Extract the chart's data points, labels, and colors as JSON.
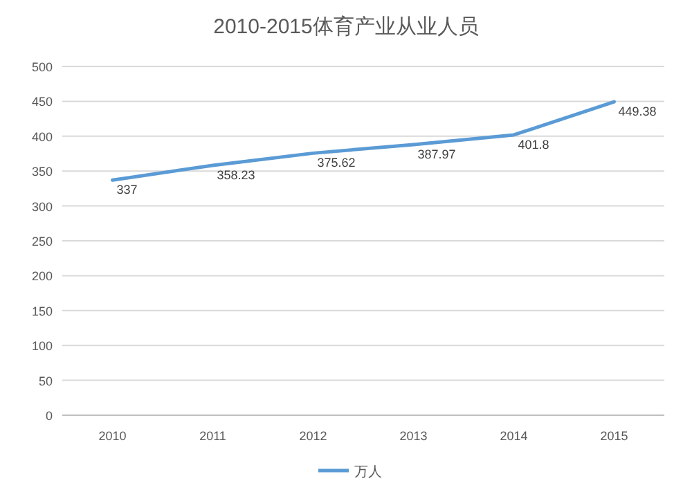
{
  "chart_data": {
    "type": "line",
    "title": "2010-2015体育产业从业人员",
    "categories": [
      "2010",
      "2011",
      "2012",
      "2013",
      "2014",
      "2015"
    ],
    "series": [
      {
        "name": "万人",
        "color": "#5b9bd5",
        "values": [
          337,
          358.23,
          375.62,
          387.97,
          401.8,
          449.38
        ]
      }
    ],
    "ylim": [
      0,
      500
    ],
    "yticks": [
      0,
      50,
      100,
      150,
      200,
      250,
      300,
      350,
      400,
      450,
      500
    ],
    "grid": "y",
    "legend": "bottom",
    "data_labels": true
  }
}
